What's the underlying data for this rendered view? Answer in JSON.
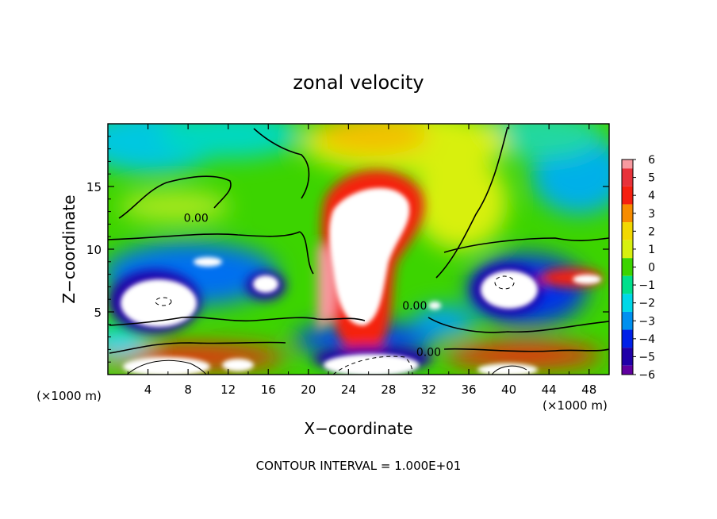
{
  "chart_data": {
    "type": "heatmap",
    "title": "zonal velocity",
    "xlabel": "X−coordinate",
    "ylabel": "Z−coordinate",
    "x_unit_label": "(×1000 m)",
    "z_unit_label": "(×1000 m)",
    "footer": "CONTOUR INTERVAL = 1.000E+01",
    "xlim": [
      0,
      50
    ],
    "ylim": [
      0,
      20
    ],
    "x_ticks": [
      4,
      8,
      12,
      16,
      20,
      24,
      28,
      32,
      36,
      40,
      44,
      48
    ],
    "x_tick_labels": [
      "4",
      "8",
      "12",
      "16",
      "20",
      "24",
      "28",
      "32",
      "36",
      "40",
      "44",
      "48"
    ],
    "y_ticks": [
      5,
      10,
      15
    ],
    "y_tick_labels": [
      "5",
      "10",
      "15"
    ],
    "colorbar": {
      "range": [
        -6,
        6
      ],
      "tick_labels": [
        "6",
        "5",
        "4",
        "3",
        "2",
        "1",
        "0",
        "−1",
        "−2",
        "−3",
        "−4",
        "−5",
        "−6"
      ],
      "colors": [
        "#f79aa0",
        "#e8323a",
        "#f52010",
        "#f78c00",
        "#f2d800",
        "#d8f010",
        "#3cd400",
        "#00e08c",
        "#00d8e8",
        "#0090f0",
        "#0020e8",
        "#2000a8",
        "#6000a0"
      ]
    },
    "contour_labels": [
      {
        "text": "0.00",
        "x": 8.8,
        "z": 12.5
      },
      {
        "text": "0.00",
        "x": 30.6,
        "z": 5.5
      },
      {
        "text": "0.00",
        "x": 32.0,
        "z": 1.8
      }
    ]
  }
}
